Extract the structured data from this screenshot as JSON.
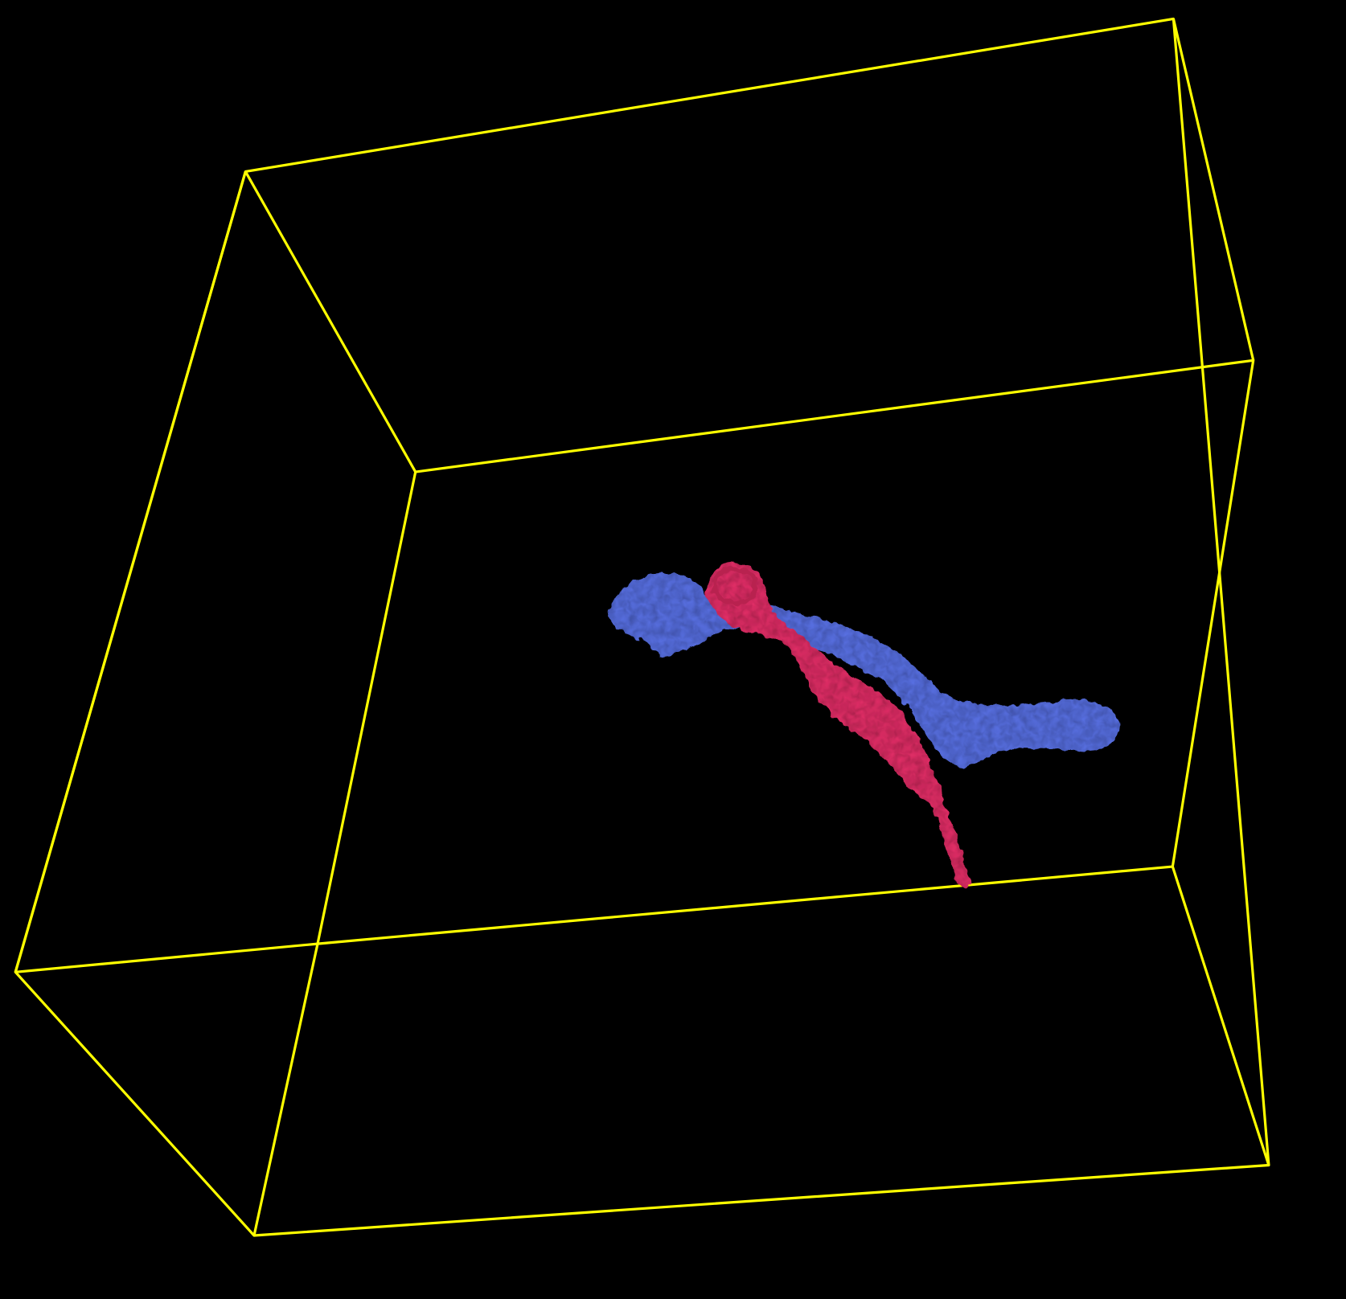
{
  "viewer": {
    "background_color": "#000000",
    "bounding_box_color": "#FFFF00",
    "meshes": [
      {
        "name": "blue-structure",
        "color": "#5B73E8"
      },
      {
        "name": "red-structure",
        "color": "#E8336A"
      }
    ]
  }
}
